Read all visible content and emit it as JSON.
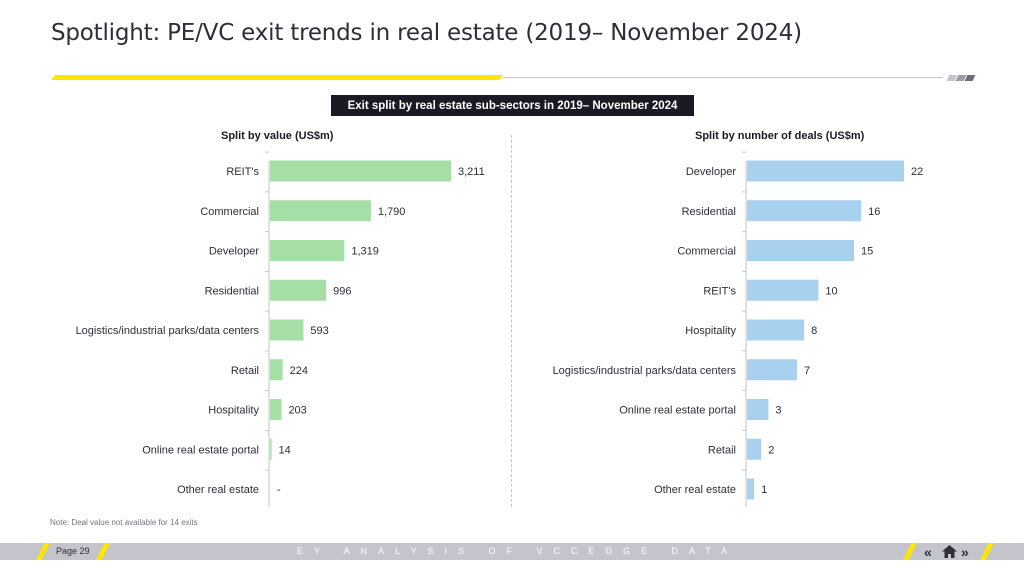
{
  "title": "Spotlight: PE/VC exit trends in real estate (2019– November 2024)",
  "subtitle": "Exit split by real estate sub-sectors in 2019– November 2024",
  "note": "Note: Deal value not available for 14 exits",
  "footer": {
    "page": "Page 29",
    "center_text": "EY ANALYSIS OF VCCEDGE DATA",
    "icons": [
      "chevron-left-double-icon",
      "home-icon",
      "chevron-right-double-icon"
    ]
  },
  "colors": {
    "accent": "#ffe600",
    "value_bar": "#a6dfa6",
    "deals_bar": "#a8d0ef",
    "dark": "#1a1a24"
  },
  "chart_data": [
    {
      "type": "bar",
      "orientation": "horizontal",
      "title": "Split by value (US$m)",
      "categories": [
        "REIT's",
        "Commercial",
        "Developer",
        "Residential",
        "Logistics/industrial parks/data centers",
        "Retail",
        "Hospitality",
        "Online real estate portal",
        "Other real estate"
      ],
      "values": [
        3211,
        1790,
        1319,
        996,
        593,
        224,
        203,
        14,
        null
      ],
      "labels": [
        "3,211",
        "1,790",
        "1,319",
        "996",
        "593",
        "224",
        "203",
        "14",
        "-"
      ],
      "xlim": [
        0,
        3211
      ]
    },
    {
      "type": "bar",
      "orientation": "horizontal",
      "title": "Split by number of deals (US$m)",
      "categories": [
        "Developer",
        "Residential",
        "Commercial",
        "REIT's",
        "Hospitality",
        "Logistics/industrial parks/data centers",
        "Online real estate portal",
        "Retail",
        "Other real estate"
      ],
      "values": [
        22,
        16,
        15,
        10,
        8,
        7,
        3,
        2,
        1
      ],
      "labels": [
        "22",
        "16",
        "15",
        "10",
        "8",
        "7",
        "3",
        "2",
        "1"
      ],
      "xlim": [
        0,
        22
      ]
    }
  ]
}
